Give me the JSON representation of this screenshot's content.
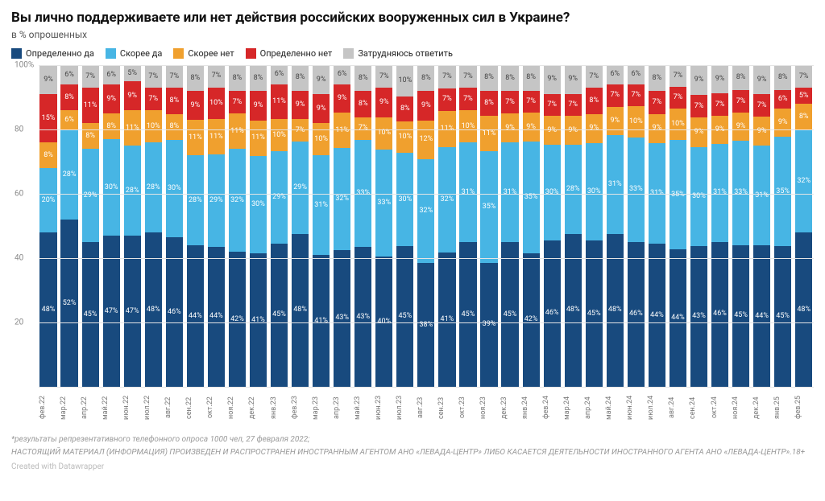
{
  "title": "Вы лично поддерживаете или нет действия российских вооруженных сил в Украине?",
  "subtitle": "в % опрошенных",
  "legend": [
    {
      "label": "Определенно да",
      "color": "#184a7e"
    },
    {
      "label": "Скорее да",
      "color": "#47b5e4"
    },
    {
      "label": "Скорее нет",
      "color": "#f0a02e"
    },
    {
      "label": "Определенно нет",
      "color": "#d62728"
    },
    {
      "label": "Затрудняюсь ответить",
      "color": "#c5c5c5"
    }
  ],
  "yAxis": {
    "min": 0,
    "max": 100,
    "ticks": [
      20,
      40,
      60,
      80,
      100
    ],
    "topLabel": "100%"
  },
  "series": {
    "colors": [
      "#184a7e",
      "#47b5e4",
      "#f0a02e",
      "#d62728",
      "#c5c5c5"
    ],
    "lightText": [
      false,
      false,
      false,
      false,
      true
    ]
  },
  "periods": [
    {
      "x": "фев.22",
      "v": [
        48,
        20,
        8,
        15,
        9
      ]
    },
    {
      "x": "мар.22",
      "v": [
        52,
        28,
        6,
        8,
        6
      ]
    },
    {
      "x": "апр.22",
      "v": [
        45,
        29,
        8,
        11,
        7
      ]
    },
    {
      "x": "май.22",
      "v": [
        47,
        30,
        8,
        9,
        6
      ]
    },
    {
      "x": "июн.22",
      "v": [
        47,
        28,
        11,
        9,
        5
      ]
    },
    {
      "x": "июл.22",
      "v": [
        48,
        28,
        10,
        7,
        7
      ]
    },
    {
      "x": "авг.22",
      "v": [
        46,
        30,
        8,
        8,
        7
      ]
    },
    {
      "x": "сен.22",
      "v": [
        44,
        28,
        11,
        9,
        8
      ]
    },
    {
      "x": "окт.22",
      "v": [
        44,
        29,
        11,
        10,
        7
      ]
    },
    {
      "x": "ноя.22",
      "v": [
        42,
        32,
        11,
        7,
        8
      ]
    },
    {
      "x": "дек.22",
      "v": [
        41,
        30,
        11,
        9,
        8
      ]
    },
    {
      "x": "янв.23",
      "v": [
        45,
        29,
        10,
        11,
        6
      ]
    },
    {
      "x": "фев.23",
      "v": [
        48,
        29,
        7,
        9,
        8
      ]
    },
    {
      "x": "мар.23",
      "v": [
        41,
        31,
        10,
        9,
        9
      ]
    },
    {
      "x": "апр.23",
      "v": [
        43,
        32,
        11,
        9,
        6
      ]
    },
    {
      "x": "май.23",
      "v": [
        43,
        33,
        7,
        8,
        8
      ]
    },
    {
      "x": "июн.23",
      "v": [
        40,
        33,
        10,
        9,
        7
      ]
    },
    {
      "x": "июл.23",
      "v": [
        45,
        30,
        10,
        8,
        10
      ]
    },
    {
      "x": "авг.23",
      "v": [
        38,
        32,
        12,
        9,
        8
      ]
    },
    {
      "x": "сен.23",
      "v": [
        41,
        32,
        11,
        7,
        7
      ]
    },
    {
      "x": "окт.23",
      "v": [
        45,
        31,
        10,
        7,
        7
      ]
    },
    {
      "x": "ноя.23",
      "v": [
        39,
        35,
        11,
        8,
        8
      ]
    },
    {
      "x": "дек.23",
      "v": [
        45,
        31,
        9,
        7,
        8
      ]
    },
    {
      "x": "янв.24",
      "v": [
        42,
        35,
        9,
        7,
        8
      ]
    },
    {
      "x": "фев.24",
      "v": [
        46,
        30,
        9,
        7,
        9
      ]
    },
    {
      "x": "мар.24",
      "v": [
        48,
        28,
        9,
        7,
        9
      ]
    },
    {
      "x": "апр.24",
      "v": [
        45,
        30,
        9,
        8,
        7
      ]
    },
    {
      "x": "май.24",
      "v": [
        48,
        31,
        9,
        7,
        6
      ]
    },
    {
      "x": "июн.24",
      "v": [
        46,
        33,
        10,
        7,
        6
      ]
    },
    {
      "x": "июл.24",
      "v": [
        44,
        31,
        9,
        7,
        8
      ]
    },
    {
      "x": "авг.24",
      "v": [
        44,
        35,
        10,
        7,
        7
      ]
    },
    {
      "x": "сен.24",
      "v": [
        43,
        30,
        9,
        7,
        9
      ]
    },
    {
      "x": "окт.24",
      "v": [
        46,
        31,
        9,
        7,
        9
      ]
    },
    {
      "x": "ноя.24",
      "v": [
        45,
        33,
        9,
        7,
        8
      ]
    },
    {
      "x": "дек.24",
      "v": [
        44,
        31,
        9,
        7,
        9
      ]
    },
    {
      "x": "янв.25",
      "v": [
        45,
        35,
        9,
        6,
        8
      ]
    },
    {
      "x": "фев.25",
      "v": [
        48,
        32,
        8,
        5,
        7
      ]
    }
  ],
  "footnote1": "*результаты репрезентативного телефонного опроса 1000 чел, 27 февраля 2022;",
  "footnote2": "НАСТОЯЩИЙ МАТЕРИАЛ (ИНФОРМАЦИЯ) ПРОИЗВЕДЕН И РАСПРОСТРАНЕН ИНОСТРАННЫМ АГЕНТОМ АНО «ЛЕВАДА-ЦЕНТР» ЛИБО КАСАЕТСЯ ДЕЯТЕЛЬНОСТИ ИНОСТРАННОГО АГЕНТА АНО «ЛЕВАДА-ЦЕНТР».18+",
  "credit": "Created with Datawrapper"
}
